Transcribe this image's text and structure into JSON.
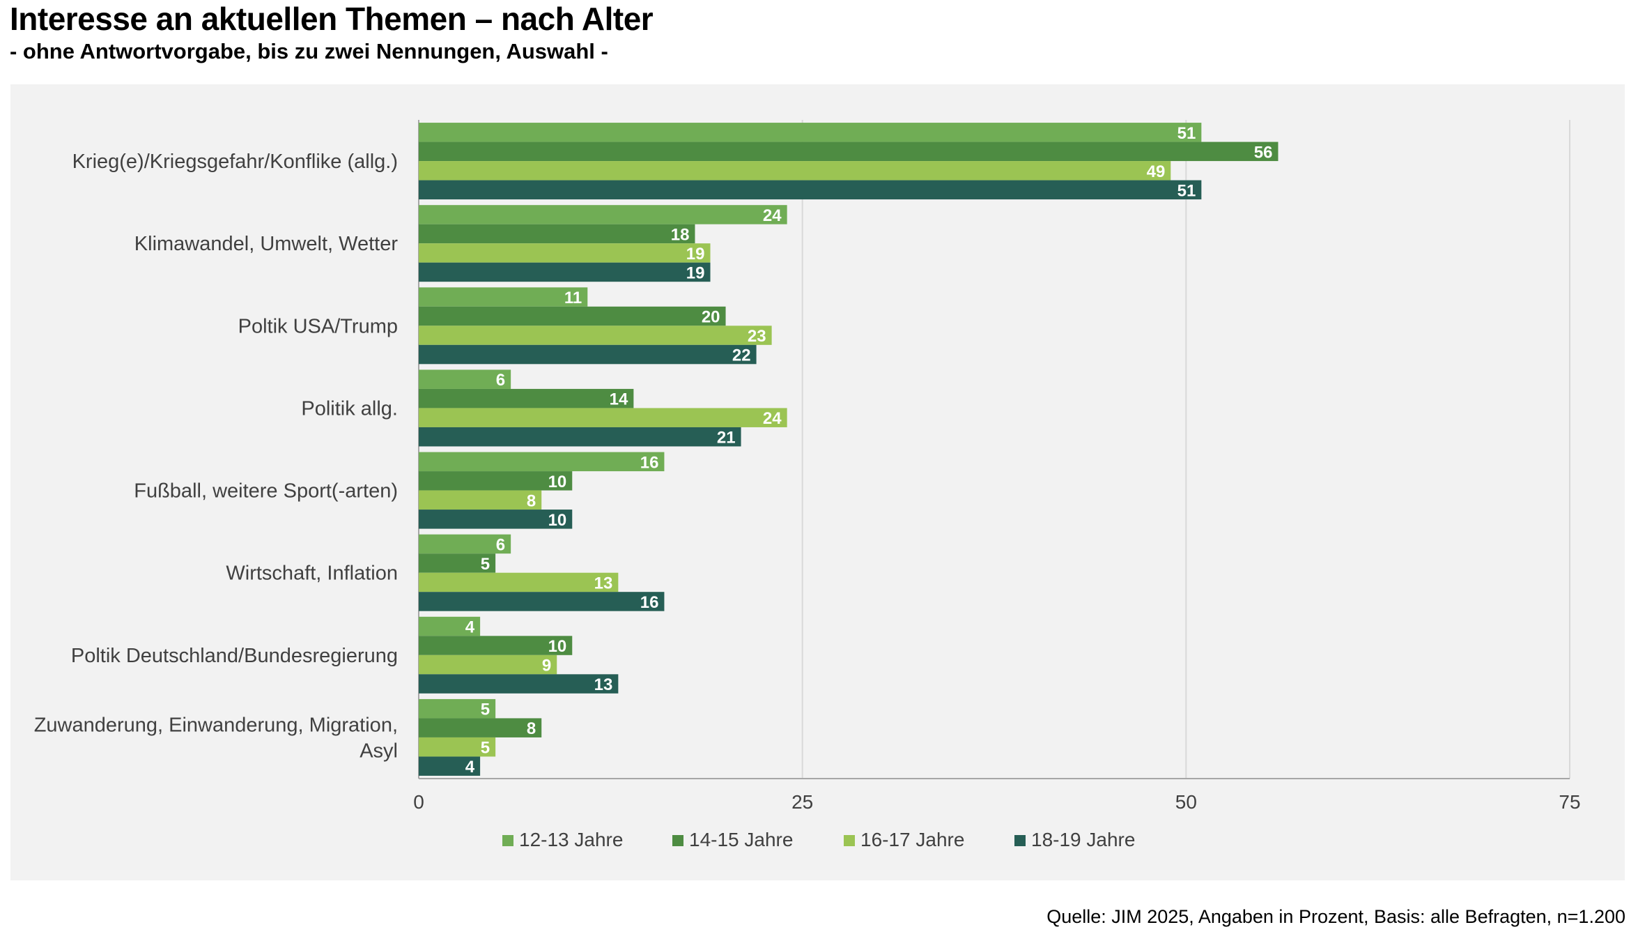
{
  "title": "Interesse an aktuellen Themen – nach Alter",
  "subtitle": "- ohne Antwortvorgabe, bis zu zwei Nennungen, Auswahl -",
  "source": "Quelle: JIM 2025, Angaben in Prozent, Basis: alle Befragten, n=1.200",
  "chart_data": {
    "type": "bar",
    "orientation": "horizontal",
    "title": "Interesse an aktuellen Themen – nach Alter",
    "subtitle": "- ohne Antwortvorgabe, bis zu zwei Nennungen, Auswahl -",
    "xlabel": "",
    "ylabel": "",
    "xlim": [
      0,
      75
    ],
    "xticks": [
      0,
      25,
      50,
      75
    ],
    "grid": true,
    "legend_position": "bottom",
    "categories": [
      [
        "Krieg(e)/Kriegsgefahr/Konflike (allg.)"
      ],
      [
        "Klimawandel, Umwelt, Wetter"
      ],
      [
        "Poltik USA/Trump"
      ],
      [
        "Politik allg."
      ],
      [
        "Fußball, weitere Sport(-arten)"
      ],
      [
        "Wirtschaft, Inflation"
      ],
      [
        "Poltik Deutschland/Bundesregierung"
      ],
      [
        "Zuwanderung, Einwanderung, Migration,",
        "Asyl"
      ]
    ],
    "series": [
      {
        "name": "12-13 Jahre",
        "color": "#70ad55",
        "values": [
          51,
          24,
          11,
          6,
          16,
          6,
          4,
          5
        ]
      },
      {
        "name": "14-15 Jahre",
        "color": "#4e8c42",
        "values": [
          56,
          18,
          20,
          14,
          10,
          5,
          10,
          8
        ]
      },
      {
        "name": "16-17 Jahre",
        "color": "#9bc453",
        "values": [
          49,
          19,
          23,
          24,
          8,
          13,
          9,
          5
        ]
      },
      {
        "name": "18-19 Jahre",
        "color": "#265e55",
        "values": [
          51,
          19,
          22,
          21,
          10,
          16,
          13,
          4
        ]
      }
    ]
  }
}
